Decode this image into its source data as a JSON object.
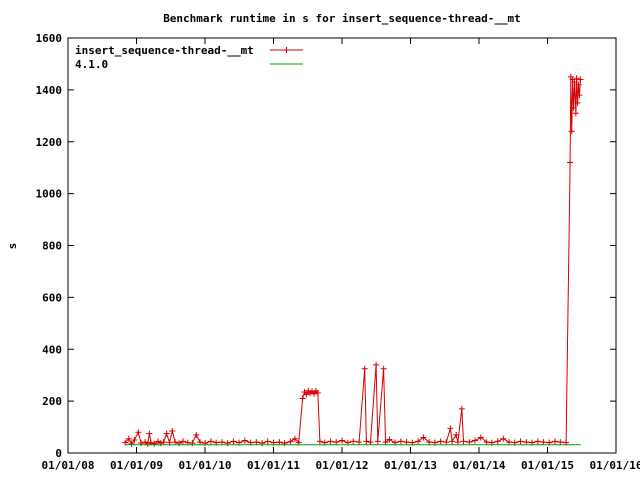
{
  "chart_data": {
    "type": "line",
    "title": "Benchmark runtime in s for insert_sequence-thread-__mt",
    "xlabel": "",
    "ylabel": "s",
    "xlim": [
      "2008-01-01",
      "2016-01-01"
    ],
    "ylim": [
      0,
      1600
    ],
    "x_tick_labels": [
      "01/01/08",
      "01/01/09",
      "01/01/10",
      "01/01/11",
      "01/01/12",
      "01/01/13",
      "01/01/14",
      "01/01/15",
      "01/01/16"
    ],
    "y_tick_labels": [
      "0",
      "200",
      "400",
      "600",
      "800",
      "1000",
      "1200",
      "1400",
      "1600"
    ],
    "grid": false,
    "legend_position": "top-left",
    "series": [
      {
        "name": "insert_sequence-thread-__mt",
        "color": "#d40000",
        "marker": "plus",
        "points": [
          [
            "2008-11-01",
            40
          ],
          [
            "2008-11-20",
            55
          ],
          [
            "2008-12-05",
            35
          ],
          [
            "2008-12-20",
            50
          ],
          [
            "2009-01-10",
            80
          ],
          [
            "2009-01-25",
            38
          ],
          [
            "2009-02-15",
            42
          ],
          [
            "2009-03-01",
            35
          ],
          [
            "2009-03-10",
            75
          ],
          [
            "2009-03-18",
            40
          ],
          [
            "2009-04-05",
            35
          ],
          [
            "2009-04-25",
            45
          ],
          [
            "2009-05-10",
            38
          ],
          [
            "2009-05-25",
            42
          ],
          [
            "2009-06-10",
            75
          ],
          [
            "2009-06-25",
            40
          ],
          [
            "2009-07-10",
            85
          ],
          [
            "2009-07-25",
            42
          ],
          [
            "2009-08-15",
            38
          ],
          [
            "2009-09-05",
            45
          ],
          [
            "2009-10-01",
            40
          ],
          [
            "2009-10-25",
            38
          ],
          [
            "2009-11-15",
            70
          ],
          [
            "2009-12-05",
            42
          ],
          [
            "2010-01-01",
            38
          ],
          [
            "2010-02-01",
            45
          ],
          [
            "2010-03-01",
            40
          ],
          [
            "2010-04-01",
            42
          ],
          [
            "2010-05-01",
            38
          ],
          [
            "2010-06-01",
            45
          ],
          [
            "2010-07-01",
            40
          ],
          [
            "2010-08-01",
            48
          ],
          [
            "2010-09-01",
            40
          ],
          [
            "2010-10-01",
            42
          ],
          [
            "2010-11-01",
            38
          ],
          [
            "2010-12-01",
            45
          ],
          [
            "2011-01-01",
            40
          ],
          [
            "2011-02-01",
            42
          ],
          [
            "2011-03-01",
            38
          ],
          [
            "2011-04-01",
            44
          ],
          [
            "2011-04-25",
            55
          ],
          [
            "2011-05-15",
            40
          ],
          [
            "2011-06-05",
            210
          ],
          [
            "2011-06-15",
            235
          ],
          [
            "2011-06-25",
            225
          ],
          [
            "2011-07-05",
            240
          ],
          [
            "2011-07-15",
            230
          ],
          [
            "2011-07-25",
            238
          ],
          [
            "2011-08-05",
            228
          ],
          [
            "2011-08-15",
            240
          ],
          [
            "2011-08-25",
            232
          ],
          [
            "2011-09-05",
            45
          ],
          [
            "2011-10-01",
            40
          ],
          [
            "2011-11-01",
            45
          ],
          [
            "2011-12-01",
            42
          ],
          [
            "2012-01-01",
            48
          ],
          [
            "2012-02-01",
            40
          ],
          [
            "2012-03-01",
            45
          ],
          [
            "2012-04-01",
            42
          ],
          [
            "2012-05-01",
            325
          ],
          [
            "2012-05-10",
            45
          ],
          [
            "2012-06-01",
            42
          ],
          [
            "2012-07-01",
            340
          ],
          [
            "2012-07-10",
            45
          ],
          [
            "2012-08-10",
            325
          ],
          [
            "2012-08-20",
            42
          ],
          [
            "2012-09-10",
            52
          ],
          [
            "2012-10-10",
            40
          ],
          [
            "2012-11-10",
            45
          ],
          [
            "2012-12-10",
            42
          ],
          [
            "2013-01-10",
            40
          ],
          [
            "2013-02-10",
            45
          ],
          [
            "2013-03-10",
            60
          ],
          [
            "2013-04-10",
            42
          ],
          [
            "2013-05-10",
            40
          ],
          [
            "2013-06-10",
            45
          ],
          [
            "2013-07-10",
            42
          ],
          [
            "2013-08-01",
            95
          ],
          [
            "2013-08-10",
            45
          ],
          [
            "2013-09-01",
            70
          ],
          [
            "2013-09-10",
            42
          ],
          [
            "2013-10-01",
            170
          ],
          [
            "2013-10-10",
            45
          ],
          [
            "2013-11-10",
            42
          ],
          [
            "2013-12-10",
            48
          ],
          [
            "2014-01-10",
            60
          ],
          [
            "2014-02-10",
            42
          ],
          [
            "2014-03-10",
            40
          ],
          [
            "2014-04-10",
            45
          ],
          [
            "2014-05-10",
            55
          ],
          [
            "2014-06-10",
            42
          ],
          [
            "2014-07-10",
            40
          ],
          [
            "2014-08-10",
            45
          ],
          [
            "2014-09-10",
            42
          ],
          [
            "2014-10-10",
            40
          ],
          [
            "2014-11-10",
            45
          ],
          [
            "2014-12-10",
            42
          ],
          [
            "2015-01-10",
            40
          ],
          [
            "2015-02-10",
            45
          ],
          [
            "2015-03-10",
            42
          ],
          [
            "2015-04-10",
            40
          ],
          [
            "2015-05-01",
            1120
          ],
          [
            "2015-05-05",
            1450
          ],
          [
            "2015-05-10",
            1240
          ],
          [
            "2015-05-15",
            1440
          ],
          [
            "2015-05-20",
            1330
          ],
          [
            "2015-05-25",
            1430
          ],
          [
            "2015-06-01",
            1310
          ],
          [
            "2015-06-05",
            1445
          ],
          [
            "2015-06-10",
            1350
          ],
          [
            "2015-06-15",
            1420
          ],
          [
            "2015-06-20",
            1380
          ],
          [
            "2015-06-25",
            1440
          ]
        ]
      },
      {
        "name": "4.1.0",
        "color": "#00a000",
        "marker": "none",
        "points": [
          [
            "2008-11-01",
            32
          ],
          [
            "2015-06-28",
            32
          ]
        ]
      }
    ]
  }
}
